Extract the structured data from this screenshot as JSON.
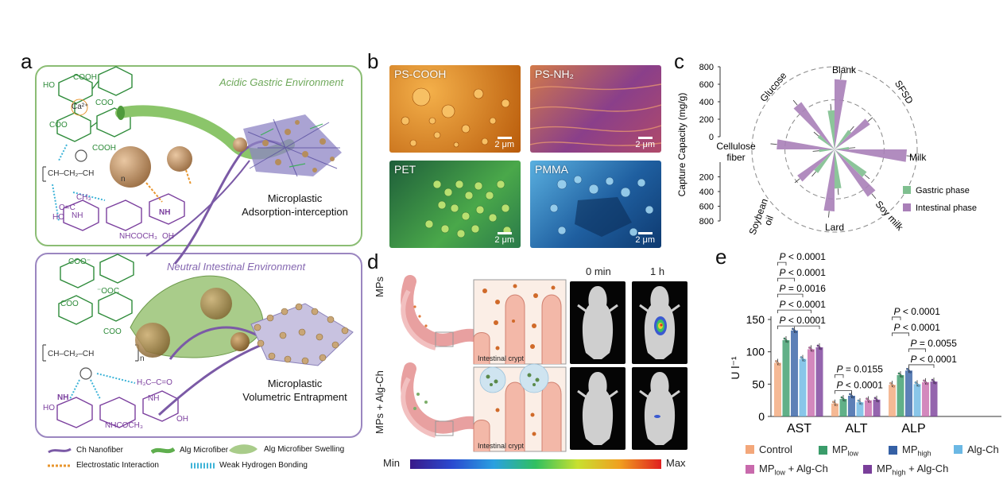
{
  "panel_a": {
    "letter": "a",
    "top_env": "Acidic Gastric Environment",
    "bottom_env": "Neutral Intestinal Environment",
    "top_label_line1": "Microplastic",
    "top_label_line2": "Adsorption-interception",
    "bottom_label_line1": "Microplastic",
    "bottom_label_line2": "Volumetric Entrapment",
    "chem_top": {
      "cooh1": "COOH",
      "cooh2": "COOH",
      "coo1": "COO",
      "coo2": "COO",
      "ca": "Ca²⁺",
      "ch": "CH–CH₂–CH",
      "n": "n",
      "nh": "NH",
      "ch3": "CH₃",
      "oc": "O=C",
      "ho1": "HO",
      "ho2": "HO",
      "oh": "OH",
      "nhcoch3": "NHCOCH₃"
    },
    "chem_bottom": {
      "coo1": "COO⁻",
      "coo2": "COO",
      "ooc": "⁻OOC",
      "coo3": "COO",
      "ch": "CH–CH₂–CH",
      "n": "n",
      "nh": "NH",
      "h3cco": "H₃C–C=O",
      "nh2": "NH",
      "nhcoch3": "NHCOCH₃",
      "ho": "HO",
      "oh": "OH"
    },
    "legend": [
      {
        "name": "Ch Nanofiber",
        "color": "#7b5aa6"
      },
      {
        "name": "Alg Microfiber",
        "color": "#5fae4e"
      },
      {
        "name": "Alg Microfiber Swelling",
        "color": "#a9cc8a"
      },
      {
        "name": "Electrostatic Interaction",
        "color": "#e8962e"
      },
      {
        "name": "Weak Hydrogen Bonding",
        "color": "#3fb4d8"
      }
    ],
    "colors": {
      "gastric_border": "#8bbd74",
      "intestinal_border": "#9b86c0",
      "alg": "#2e8b3a",
      "ch": "#7b3f9e"
    }
  },
  "panel_b": {
    "letter": "b",
    "images": [
      {
        "label": "PS-COOH",
        "scale": "2 μm",
        "color": "#e48a1f"
      },
      {
        "label": "PS-NH₂",
        "scale": "2 μm",
        "color": "#b6507a"
      },
      {
        "label": "PET",
        "scale": "2 μm",
        "color": "#4aa84a"
      },
      {
        "label": "PMMA",
        "scale": "2 μm",
        "color": "#2f7fc0"
      }
    ]
  },
  "panel_c": {
    "letter": "c",
    "chart_data": {
      "type": "bar",
      "subtype": "radial",
      "ylabel": "Capture Capacity (mg/g)",
      "yticks_top": [
        "800",
        "600",
        "400",
        "200",
        "0"
      ],
      "yticks_bottom": [
        "200",
        "400",
        "600",
        "800"
      ],
      "ylim": [
        0,
        800
      ],
      "categories": [
        "Blank",
        "SFSD",
        "Milk",
        "Soy milk",
        "Lard",
        "Soybean oil",
        "Cellulose fiber",
        "Glucose"
      ],
      "series": [
        {
          "name": "Gastric phase",
          "color": "#7fbf8f",
          "values": [
            380,
            230,
            140,
            380,
            380,
            280,
            150,
            200
          ]
        },
        {
          "name": "Intestinal phase",
          "color": "#a97fb8",
          "values": [
            680,
            420,
            700,
            560,
            600,
            440,
            560,
            560
          ]
        }
      ],
      "legend_position": "bottom-right"
    }
  },
  "panel_d": {
    "letter": "d",
    "row1": "MPs",
    "row2": "MPs + Alg-Ch",
    "crypt1": "Intestinal crypt",
    "crypt2": "Intestinal crypt",
    "time1": "0 min",
    "time2": "1 h",
    "scale_min": "Min",
    "scale_max": "Max"
  },
  "panel_e": {
    "letter": "e",
    "chart_data": {
      "type": "bar",
      "categories": [
        "AST",
        "ALT",
        "ALP"
      ],
      "ylabel": "U l⁻¹",
      "ylim": [
        0,
        150
      ],
      "yticks": [
        0,
        50,
        100,
        150
      ],
      "series": [
        {
          "name": "Control",
          "sub": "",
          "color": "#f3a77a",
          "values": [
            83,
            20,
            49
          ]
        },
        {
          "name": "MP",
          "sub": "low",
          "color": "#3a9c6a",
          "values": [
            118,
            27,
            64
          ]
        },
        {
          "name": "MP",
          "sub": "high",
          "color": "#3560a5",
          "values": [
            133,
            32,
            71
          ]
        },
        {
          "name": "Alg-Ch",
          "sub": "",
          "color": "#6bb8e4",
          "values": [
            89,
            22,
            50
          ]
        },
        {
          "name": "MP",
          "sub": "low",
          "suffix": " + Alg-Ch",
          "color": "#c86aac",
          "values": [
            104,
            25,
            53
          ]
        },
        {
          "name": "MP",
          "sub": "high",
          "suffix": " + Alg-Ch",
          "color": "#7a3f9a",
          "values": [
            107,
            26,
            54
          ]
        }
      ],
      "annotations": [
        {
          "group": "AST",
          "text": "P < 0.0001",
          "from": 0,
          "to": 5
        },
        {
          "group": "AST",
          "text": "P < 0.0001",
          "from": 0,
          "to": 4
        },
        {
          "group": "AST",
          "text": "P = 0.0016",
          "from": 0,
          "to": 3
        },
        {
          "group": "AST",
          "text": "P < 0.0001",
          "from": 0,
          "to": 2
        },
        {
          "group": "AST",
          "text": "P < 0.0001",
          "from": 0,
          "to": 1
        },
        {
          "group": "ALT",
          "text": "P < 0.0001",
          "from": 0,
          "to": 2
        },
        {
          "group": "ALT",
          "text": "P = 0.0155",
          "from": 0,
          "to": 1
        },
        {
          "group": "ALP",
          "text": "P < 0.0001",
          "from": 2,
          "to": 5
        },
        {
          "group": "ALP",
          "text": "P = 0.0055",
          "from": 2,
          "to": 4
        },
        {
          "group": "ALP",
          "text": "P < 0.0001",
          "from": 0,
          "to": 2
        },
        {
          "group": "ALP",
          "text": "P < 0.0001",
          "from": 0,
          "to": 1
        }
      ]
    }
  }
}
